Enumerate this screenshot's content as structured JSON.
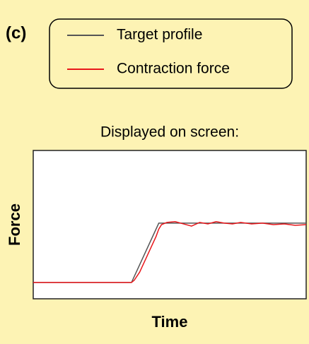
{
  "chart_data": {
    "type": "line",
    "panel_label": "(c)",
    "title": "Displayed on screen:",
    "x_label": "Time",
    "y_label": "Force",
    "xlim": [
      0,
      100
    ],
    "ylim": [
      0,
      100
    ],
    "series": [
      {
        "name": "Target profile",
        "color": "#555555",
        "x": [
          0,
          36,
          46,
          100
        ],
        "values": [
          11,
          11,
          51,
          51
        ]
      },
      {
        "name": "Contraction force",
        "color": "#e8171b",
        "x": [
          0,
          36,
          37,
          39,
          41,
          43,
          45,
          46,
          47,
          49,
          52,
          55,
          58,
          61,
          64,
          67,
          70,
          73,
          76,
          80,
          84,
          88,
          92,
          96,
          100
        ],
        "values": [
          11,
          11,
          12.5,
          18,
          26,
          34,
          42,
          47,
          50,
          51.5,
          52,
          50.5,
          49,
          51.5,
          50.5,
          52,
          51,
          50.5,
          51.5,
          50.5,
          51,
          50,
          50.5,
          49.5,
          50
        ]
      }
    ]
  }
}
